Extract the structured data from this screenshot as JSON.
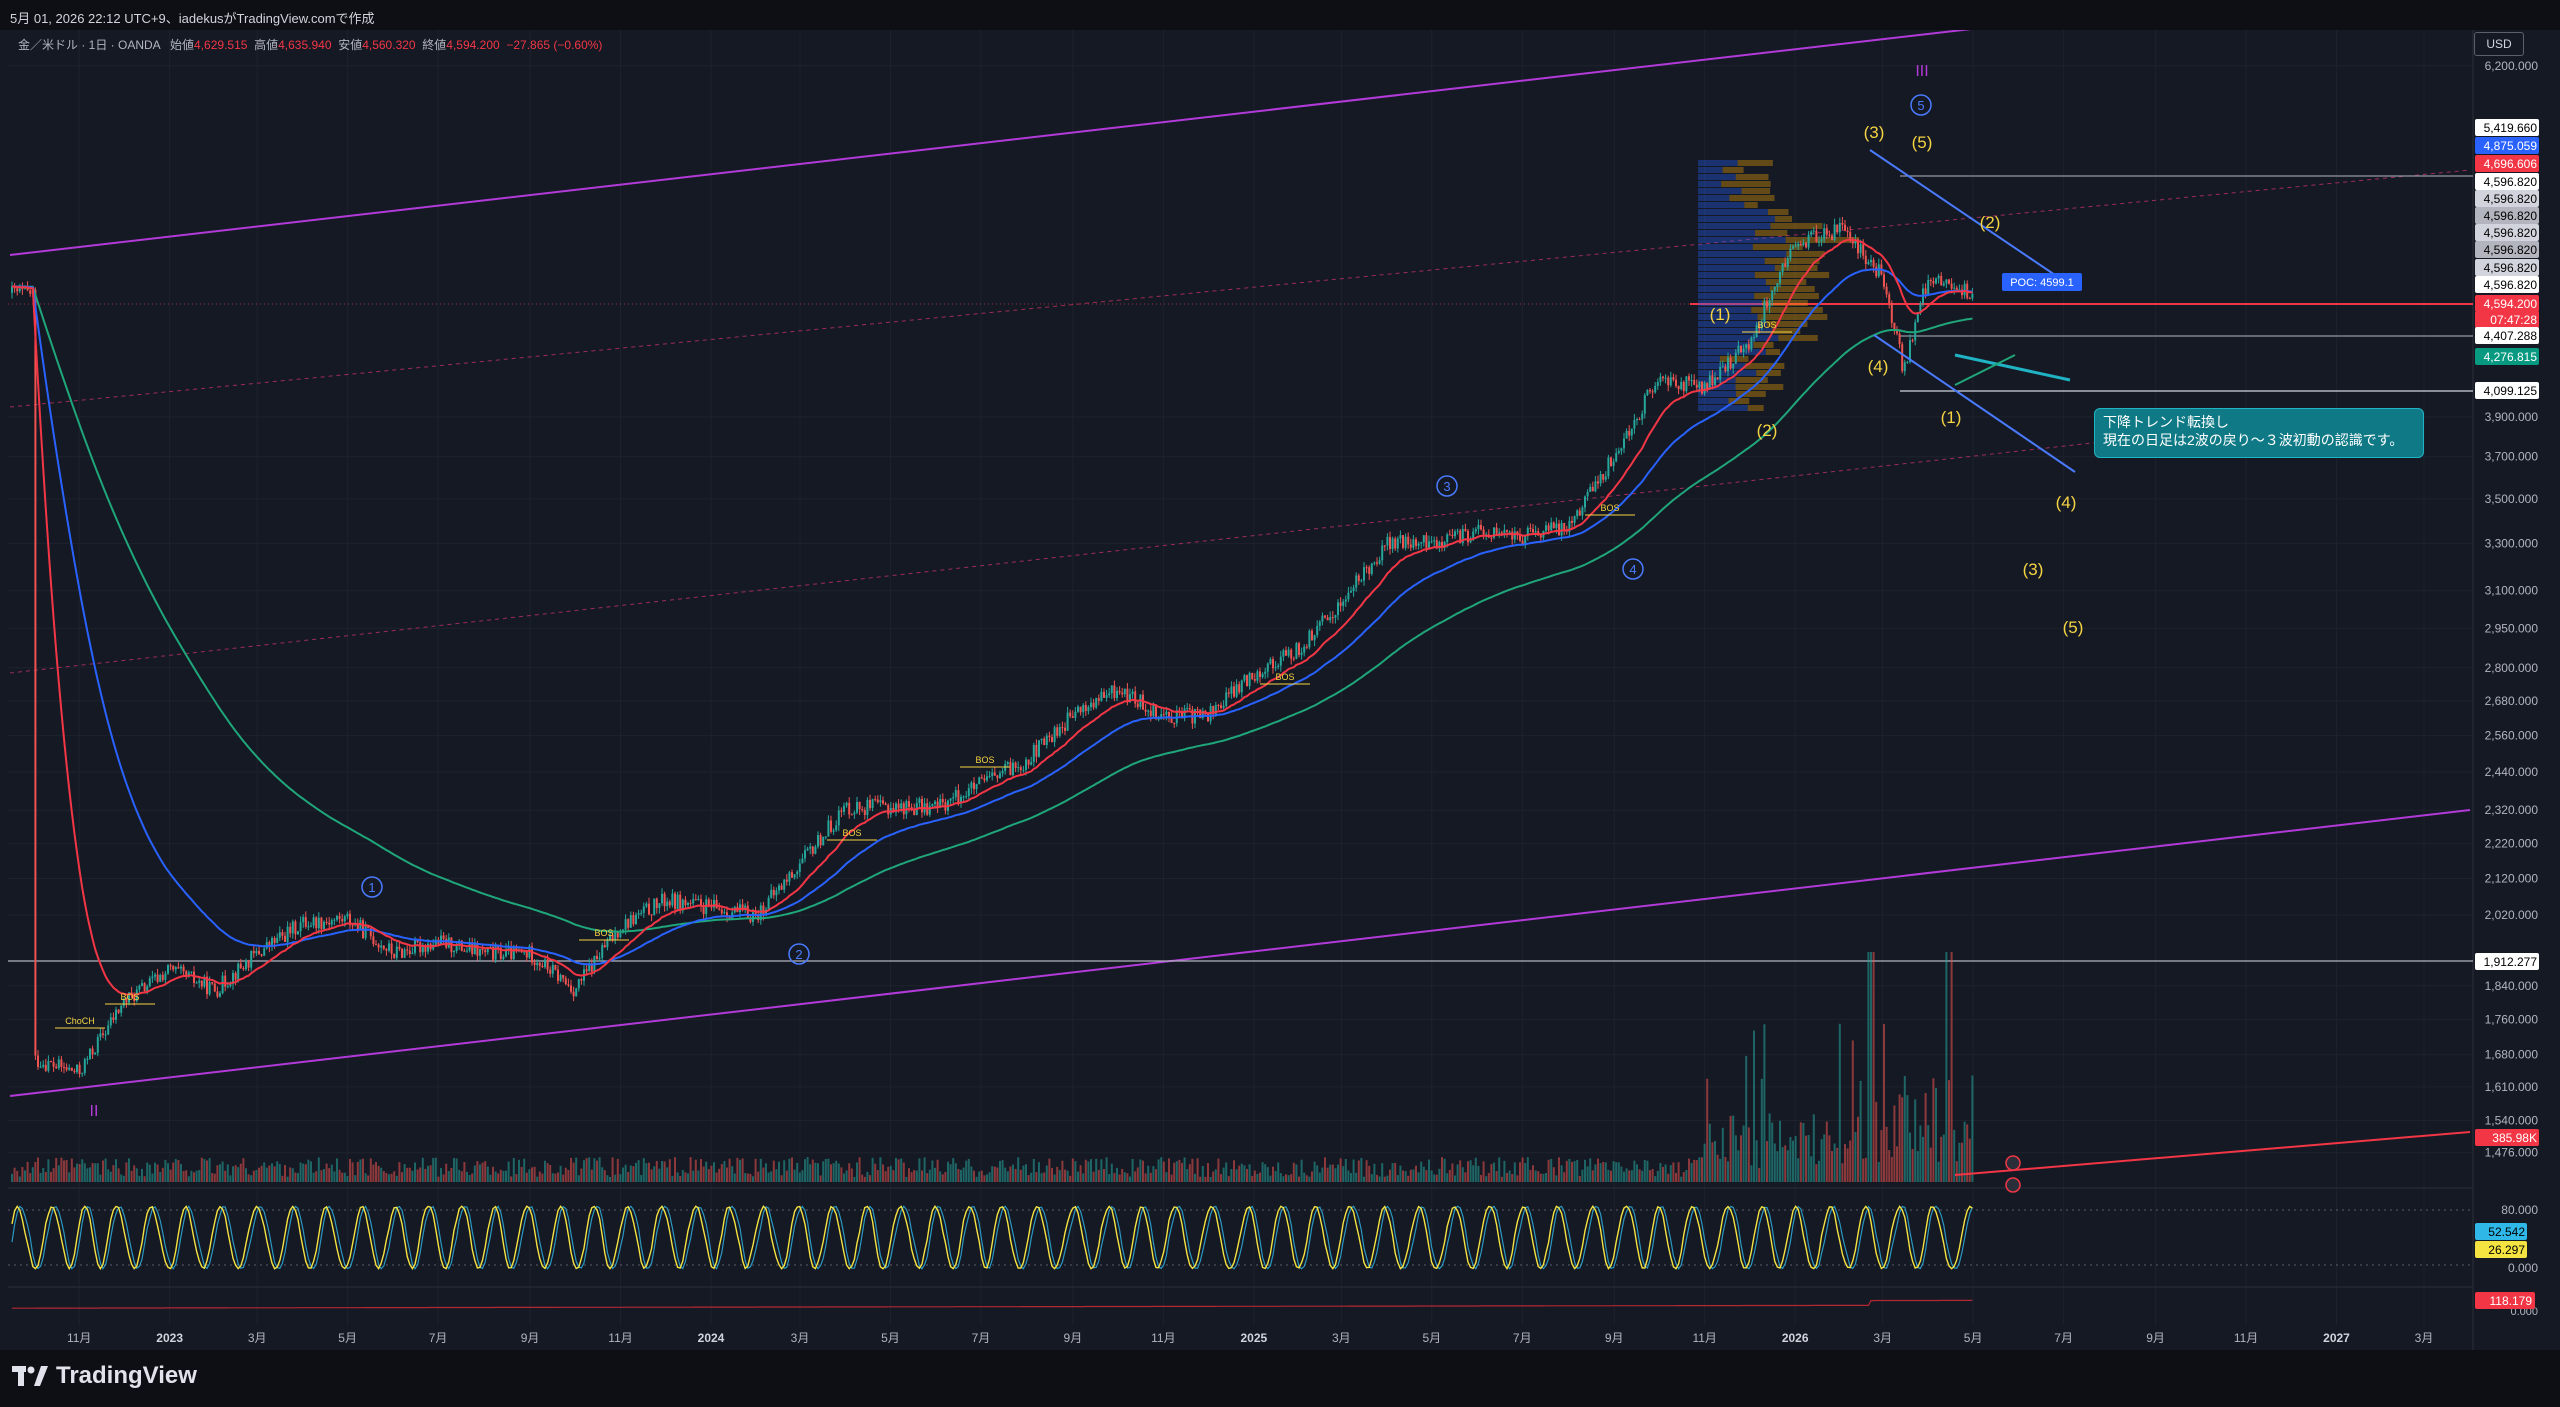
{
  "header": {
    "timestamp": "5月 01, 2026 22:12 UTC+9、iadekusがTradingView.comで作成"
  },
  "legend": {
    "symbol": "金／米ドル · 1日 · OANDA",
    "open_label": "始値",
    "open": "4,629.515",
    "high_label": "高値",
    "high": "4,635.940",
    "low_label": "安値",
    "low": "4,560.320",
    "close_label": "終値",
    "close": "4,594.200",
    "change": "−27.865 (−0.60%)"
  },
  "currency_button": "USD",
  "callout": {
    "line1": "下降トレンド転換し",
    "line2": "現在の日足は2波の戻り〜３波初動の認識です。"
  },
  "poc_label": "POC: 4599.1",
  "branding": "TradingView",
  "colors": {
    "up": "#26a69a",
    "down": "#ef5350",
    "ema_fast": "#f23645",
    "ema_mid": "#2962ff",
    "ema_slow": "#1fa67a",
    "channel": "#b23ad9",
    "wave_yellow": "#f5d442",
    "wave_blue": "#4a7bff"
  },
  "chart_data": {
    "type": "line",
    "title": "金／米ドル · 1日 · OANDA",
    "ylabel": "USD",
    "y_scale": "log",
    "ylim": [
      1420,
      6500
    ],
    "x_ticks": [
      "11月",
      "2023",
      "3月",
      "5月",
      "7月",
      "9月",
      "11月",
      "2024",
      "3月",
      "5月",
      "7月",
      "9月",
      "11月",
      "2025",
      "3月",
      "5月",
      "7月",
      "9月",
      "11月",
      "2026",
      "3月",
      "5月",
      "7月",
      "9月",
      "11月",
      "2027",
      "3月"
    ],
    "y_ticks": [
      "6,200.000",
      "3,900.000",
      "3,700.000",
      "3,500.000",
      "3,300.000",
      "3,100.000",
      "2,950.000",
      "2,800.000",
      "2,680.000",
      "2,560.000",
      "2,440.000",
      "2,320.000",
      "2,220.000",
      "2,120.000",
      "2,020.000",
      "1,840.000",
      "1,760.000",
      "1,680.000",
      "1,610.000",
      "1,540.000",
      "1,476.000"
    ],
    "price_labels": [
      {
        "value": "5,419.660",
        "color": "#ffffff",
        "text": "#000000"
      },
      {
        "value": "4,875.059",
        "color": "#2962ff",
        "text": "#ffffff"
      },
      {
        "value": "4,696.606",
        "color": "#f23645",
        "text": "#ffffff"
      },
      {
        "value": "4,596.820",
        "color": "#ffffff",
        "text": "#000000"
      },
      {
        "value": "4,596.820",
        "color": "#d1d4dc",
        "text": "#000000"
      },
      {
        "value": "4,596.820",
        "color": "#b2b5be",
        "text": "#000000"
      },
      {
        "value": "4,596.820",
        "color": "#d1d4dc",
        "text": "#000000"
      },
      {
        "value": "4,596.820",
        "color": "#b2b5be",
        "text": "#000000"
      },
      {
        "value": "4,596.820",
        "color": "#d1d4dc",
        "text": "#000000"
      },
      {
        "value": "4,596.820",
        "color": "#ffffff",
        "text": "#000000"
      },
      {
        "value": "4,594.200",
        "color": "#f23645",
        "text": "#ffffff"
      },
      {
        "value": "07:47:28",
        "color": "#f23645",
        "text": "#ffffff"
      },
      {
        "value": "4,407.288",
        "color": "#ffffff",
        "text": "#000000"
      },
      {
        "value": "4,276.815",
        "color": "#089981",
        "text": "#ffffff"
      },
      {
        "value": "4,099.125",
        "color": "#ffffff",
        "text": "#000000"
      },
      {
        "value": "1,912.277",
        "color": "#ffffff",
        "text": "#000000"
      },
      {
        "value": "385.98K",
        "color": "#f23645",
        "text": "#ffffff"
      }
    ],
    "osc_ticks": [
      "80.000",
      "0.000"
    ],
    "osc_labels": [
      {
        "value": "52.542",
        "color": "#2fb7e8",
        "text": "#000000"
      },
      {
        "value": "26.297",
        "color": "#f5e342",
        "text": "#000000"
      }
    ],
    "bottom_ticks": [
      "0.000"
    ],
    "bottom_label": {
      "value": "118.179",
      "color": "#f23645",
      "text": "#ffffff"
    },
    "series": [
      {
        "name": "price",
        "values": [
          [
            "2022-10-01",
            1670
          ],
          [
            "2022-11-01",
            1640
          ],
          [
            "2022-12-01",
            1800
          ],
          [
            "2023-01-01",
            1880
          ],
          [
            "2023-02-01",
            1830
          ],
          [
            "2023-03-01",
            1920
          ],
          [
            "2023-04-01",
            2000
          ],
          [
            "2023-05-01",
            2010
          ],
          [
            "2023-06-01",
            1920
          ],
          [
            "2023-07-01",
            1950
          ],
          [
            "2023-08-01",
            1920
          ],
          [
            "2023-09-01",
            1920
          ],
          [
            "2023-10-01",
            1830
          ],
          [
            "2023-11-01",
            1990
          ],
          [
            "2023-12-01",
            2060
          ],
          [
            "2024-01-01",
            2040
          ],
          [
            "2024-02-01",
            2020
          ],
          [
            "2024-03-01",
            2160
          ],
          [
            "2024-04-01",
            2330
          ],
          [
            "2024-05-01",
            2330
          ],
          [
            "2024-06-01",
            2330
          ],
          [
            "2024-07-01",
            2400
          ],
          [
            "2024-08-01",
            2480
          ],
          [
            "2024-09-01",
            2630
          ],
          [
            "2024-10-01",
            2720
          ],
          [
            "2024-11-01",
            2630
          ],
          [
            "2024-12-01",
            2630
          ],
          [
            "2025-01-01",
            2780
          ],
          [
            "2025-02-01",
            2870
          ],
          [
            "2025-03-01",
            3050
          ],
          [
            "2025-04-01",
            3300
          ],
          [
            "2025-05-01",
            3300
          ],
          [
            "2025-06-01",
            3350
          ],
          [
            "2025-07-01",
            3330
          ],
          [
            "2025-08-01",
            3380
          ],
          [
            "2025-09-01",
            3700
          ],
          [
            "2025-10-01",
            4100
          ],
          [
            "2025-11-01",
            4050
          ],
          [
            "2025-12-01",
            4300
          ],
          [
            "2026-01-01",
            4900
          ],
          [
            "2026-02-01",
            5000
          ],
          [
            "2026-03-01",
            4700
          ],
          [
            "2026-03-15",
            4150
          ],
          [
            "2026-04-01",
            4700
          ],
          [
            "2026-04-20",
            4620
          ],
          [
            "2026-05-01",
            4594
          ]
        ]
      }
    ],
    "wave_labels": {
      "blue": [
        "①",
        "②",
        "③",
        "④",
        "⑤"
      ],
      "yellow": [
        "(3)",
        "(5)",
        "(2)",
        "(1)",
        "(2)",
        "(4)",
        "(1)",
        "(4)",
        "(3)",
        "(5)"
      ],
      "purple": [
        "II",
        "III"
      ],
      "bos": [
        "BOS",
        "BOS",
        "BOS",
        "BOS",
        "BOS",
        "BOS",
        "BOS",
        "ChoCH"
      ]
    }
  }
}
